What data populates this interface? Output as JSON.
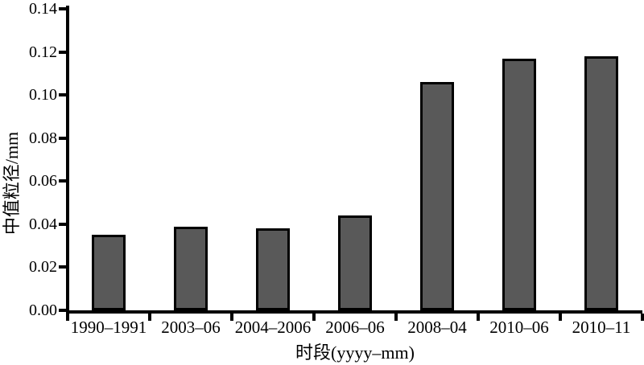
{
  "chart_data": {
    "type": "bar",
    "title": "",
    "categories": [
      "1990–1991",
      "2003–06",
      "2004–2006",
      "2006–06",
      "2008–04",
      "2010–06",
      "2010–11"
    ],
    "values": [
      0.035,
      0.039,
      0.038,
      0.044,
      0.106,
      0.117,
      0.118
    ],
    "xlabel": "时段(yyyy–mm)",
    "ylabel": "中值粒径/mm",
    "ylim": [
      0,
      0.14
    ],
    "ytick_labels": [
      "0.00",
      "0.02",
      "0.04",
      "0.06",
      "0.08",
      "0.10",
      "0.12",
      "0.14"
    ],
    "grid": false,
    "legend": false,
    "bar_fill_color": "#595959",
    "bar_border_color": "#000000",
    "axis_color": "#000000",
    "text_color": "#000000",
    "background_color": "#ffffff"
  }
}
